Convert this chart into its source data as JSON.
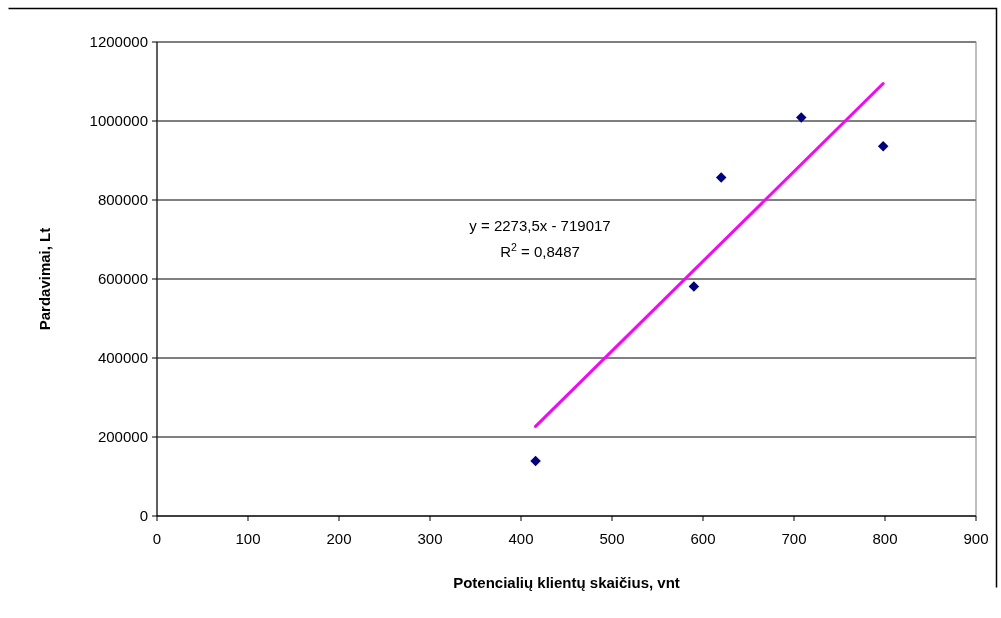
{
  "chart_data": {
    "type": "scatter",
    "xlabel": "Potencialių klientų skaičius, vnt",
    "ylabel": "Pardavimai, Lt",
    "xlim": [
      0,
      900
    ],
    "xticks": [
      0,
      100,
      200,
      300,
      400,
      500,
      600,
      700,
      800,
      900
    ],
    "ylim": [
      0,
      1200000
    ],
    "yticks": [
      0,
      200000,
      400000,
      600000,
      800000,
      1000000,
      1200000
    ],
    "grid": "y",
    "marker": "diamond",
    "series": [
      {
        "color": "#000080",
        "x": [
          416,
          590,
          620,
          708,
          798
        ],
        "values": [
          139000,
          581000,
          857000,
          1009000,
          936000
        ]
      },
      {
        "type": "line",
        "color": "#ff00ff",
        "marker": "none",
        "x": [
          416,
          798
        ],
        "values": [
          227000,
          1095000
        ]
      }
    ],
    "annotations": [
      "y = 2273,5x - 719017",
      "R$^{2}$ = 0,8487"
    ]
  }
}
